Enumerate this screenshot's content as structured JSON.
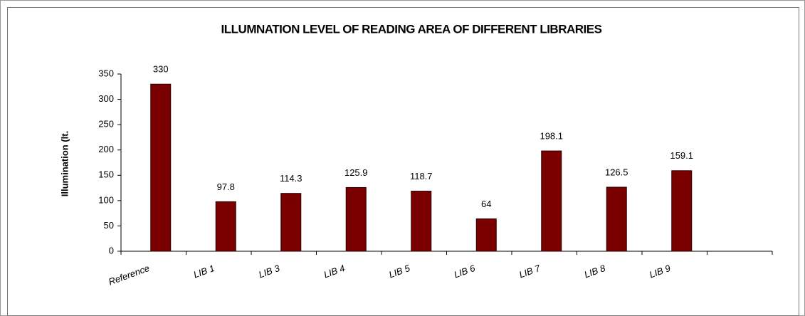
{
  "chart_data": {
    "type": "bar",
    "title": "ILLUMNATION LEVEL OF READING AREA OF DIFFERENT LIBRARIES",
    "y_label": "Illumination (lt.",
    "categories": [
      "Reference",
      "LIB 1",
      "LIB 3",
      "LIB 4",
      "LIB 5",
      "LIB 6",
      "LIB 7",
      "LIB 8",
      "LIB 9",
      null
    ],
    "values": [
      330,
      97.8,
      114.3,
      125.9,
      118.7,
      64,
      198.1,
      126.5,
      159.1,
      null
    ],
    "color": "#7a0000",
    "ylim": [
      0,
      350
    ],
    "yticks": [
      0,
      50,
      100,
      150,
      200,
      250,
      300,
      350
    ],
    "grid": false
  }
}
